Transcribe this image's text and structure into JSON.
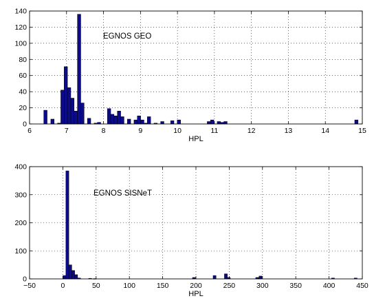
{
  "colors": {
    "bar_fill": "#0b0b8c",
    "bar_edge": "#000000",
    "grid": "#000000",
    "axes": "#000000",
    "background": "#ffffff"
  },
  "chart_data": [
    {
      "type": "bar",
      "xlabel": "HPL",
      "ylabel": "",
      "annotation": "EGNOS GEO",
      "xlim": [
        6,
        15
      ],
      "ylim": [
        0,
        140
      ],
      "xticks": [
        "6",
        "7",
        "8",
        "9",
        "10",
        "11",
        "12",
        "13",
        "14",
        "15"
      ],
      "yticks": [
        "0",
        "20",
        "40",
        "60",
        "80",
        "100",
        "120",
        "140"
      ],
      "grid": true,
      "bin_width": 0.09,
      "bins": [
        {
          "x": 6.43,
          "y": 17
        },
        {
          "x": 6.62,
          "y": 6
        },
        {
          "x": 6.8,
          "y": 1
        },
        {
          "x": 6.89,
          "y": 42
        },
        {
          "x": 6.98,
          "y": 71
        },
        {
          "x": 7.07,
          "y": 45
        },
        {
          "x": 7.16,
          "y": 32
        },
        {
          "x": 7.25,
          "y": 16
        },
        {
          "x": 7.34,
          "y": 136
        },
        {
          "x": 7.43,
          "y": 26
        },
        {
          "x": 7.61,
          "y": 7
        },
        {
          "x": 7.79,
          "y": 1
        },
        {
          "x": 7.88,
          "y": 2
        },
        {
          "x": 8.15,
          "y": 19
        },
        {
          "x": 8.24,
          "y": 12
        },
        {
          "x": 8.33,
          "y": 10
        },
        {
          "x": 8.42,
          "y": 16
        },
        {
          "x": 8.51,
          "y": 9
        },
        {
          "x": 8.69,
          "y": 6
        },
        {
          "x": 8.87,
          "y": 5
        },
        {
          "x": 8.96,
          "y": 10
        },
        {
          "x": 9.05,
          "y": 5
        },
        {
          "x": 9.14,
          "y": 1
        },
        {
          "x": 9.23,
          "y": 9
        },
        {
          "x": 9.41,
          "y": 1
        },
        {
          "x": 9.59,
          "y": 3
        },
        {
          "x": 9.86,
          "y": 4
        },
        {
          "x": 10.04,
          "y": 5
        },
        {
          "x": 10.85,
          "y": 3
        },
        {
          "x": 10.94,
          "y": 5
        },
        {
          "x": 11.12,
          "y": 3
        },
        {
          "x": 11.21,
          "y": 2
        },
        {
          "x": 11.3,
          "y": 3
        },
        {
          "x": 14.84,
          "y": 5
        }
      ]
    },
    {
      "type": "bar",
      "xlabel": "HPL",
      "ylabel": "",
      "annotation": "EGNOS SISNeT",
      "xlim": [
        -50,
        450
      ],
      "ylim": [
        0,
        400
      ],
      "xticks": [
        "−50",
        "0",
        "50",
        "100",
        "150",
        "200",
        "250",
        "300",
        "350",
        "400",
        "450"
      ],
      "yticks": [
        "0",
        "100",
        "200",
        "300",
        "400"
      ],
      "grid": true,
      "bin_width": 4.4,
      "bins": [
        {
          "x": 2.4,
          "y": 12
        },
        {
          "x": 6.8,
          "y": 385
        },
        {
          "x": 11.2,
          "y": 50
        },
        {
          "x": 15.6,
          "y": 30
        },
        {
          "x": 20.0,
          "y": 15
        },
        {
          "x": 24.4,
          "y": 3
        },
        {
          "x": 41.0,
          "y": 2
        },
        {
          "x": 48.0,
          "y": 1
        },
        {
          "x": 197.0,
          "y": 5
        },
        {
          "x": 228.0,
          "y": 12
        },
        {
          "x": 245.0,
          "y": 18
        },
        {
          "x": 249.4,
          "y": 5
        },
        {
          "x": 292.0,
          "y": 5
        },
        {
          "x": 297.0,
          "y": 10
        },
        {
          "x": 406.0,
          "y": 3
        },
        {
          "x": 440.0,
          "y": 3
        }
      ]
    }
  ]
}
